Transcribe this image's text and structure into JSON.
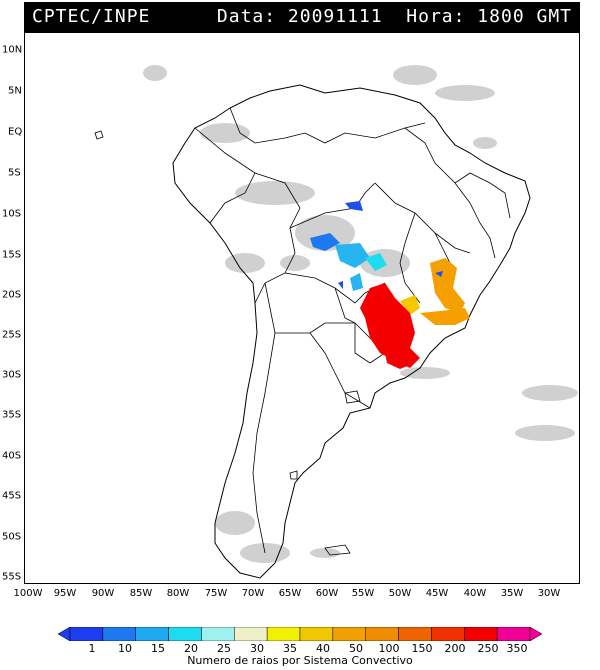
{
  "header": {
    "org": "CPTEC/INPE",
    "info": "Data: 20091111  Hora: 1800 GMT"
  },
  "map": {
    "lat_labels": [
      "10N",
      "5N",
      "EQ",
      "5S",
      "10S",
      "15S",
      "20S",
      "25S",
      "30S",
      "35S",
      "40S",
      "45S",
      "50S",
      "55S"
    ],
    "lon_labels": [
      "100W",
      "95W",
      "90W",
      "85W",
      "80W",
      "75W",
      "70W",
      "65W",
      "60W",
      "55W",
      "50W",
      "45W",
      "40W",
      "35W",
      "30W"
    ],
    "colors": {
      "cloud": "#c8c8c8",
      "coast": "#000000",
      "rays_blue": "#1e50e6",
      "rays_lightblue": "#28b4f0",
      "rays_orange": "#f5a000",
      "rays_red": "#f50000"
    }
  },
  "legend": {
    "levels": [
      "1",
      "10",
      "15",
      "20",
      "25",
      "30",
      "35",
      "40",
      "50",
      "100",
      "150",
      "200",
      "250",
      "350"
    ],
    "colors": [
      "#1e3cf0",
      "#1e78f0",
      "#1eaaf0",
      "#1edcf0",
      "#a0f0f0",
      "#f0f0c8",
      "#f0f000",
      "#f0c800",
      "#f0a000",
      "#f08c00",
      "#f06400",
      "#f03200",
      "#f00000",
      "#f00096"
    ],
    "title": "Numero de raios por Sistema Convectivo"
  }
}
